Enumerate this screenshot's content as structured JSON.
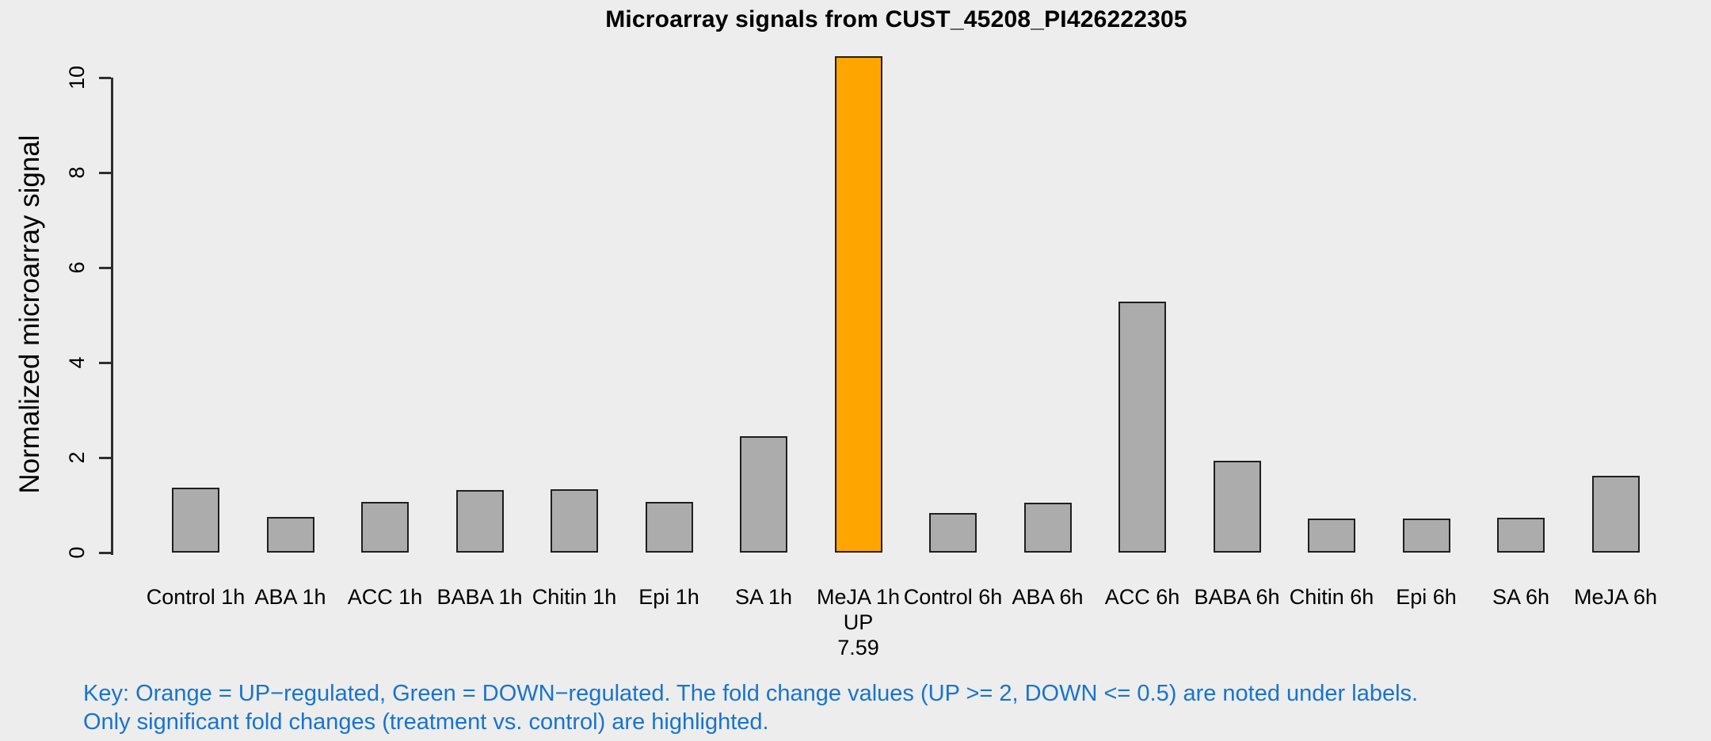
{
  "chart_data": {
    "type": "bar",
    "title": "Microarray signals from CUST_45208_PI426222305",
    "xlabel": "",
    "ylabel": "Normalized microarray signal",
    "categories": [
      "Control 1h",
      "ABA 1h",
      "ACC 1h",
      "BABA 1h",
      "Chitin 1h",
      "Epi 1h",
      "SA 1h",
      "MeJA 1h",
      "Control 6h",
      "ABA 6h",
      "ACC 6h",
      "BABA 6h",
      "Chitin 6h",
      "Epi 6h",
      "SA 6h",
      "MeJA 6h"
    ],
    "values": [
      1.37,
      0.75,
      1.07,
      1.31,
      1.34,
      1.06,
      2.45,
      10.45,
      0.83,
      1.05,
      5.28,
      1.93,
      0.72,
      0.72,
      0.73,
      1.61
    ],
    "yticks": [
      0,
      2,
      4,
      6,
      8,
      10
    ],
    "ylim": [
      0,
      10.45
    ],
    "grid": false,
    "legend_position": "none",
    "highlighted_bars": [
      {
        "index": 7,
        "category": "MeJA 1h",
        "direction": "UP",
        "fold_change": "7.59",
        "color": "#FFA500"
      }
    ]
  },
  "key": {
    "line1": "Key: Orange = UP−regulated, Green = DOWN−regulated. The fold change values (UP >= 2, DOWN <= 0.5) are noted under labels.",
    "line2": "Only significant fold changes (treatment vs. control) are highlighted."
  },
  "colors": {
    "bar_default": "#ACACAC",
    "bar_up_highlight": "#FFA500",
    "bar_border": "#1F1F1F",
    "axis": "#2F2F2F",
    "key_text": "#1874CD",
    "background": "#EDEDED"
  }
}
